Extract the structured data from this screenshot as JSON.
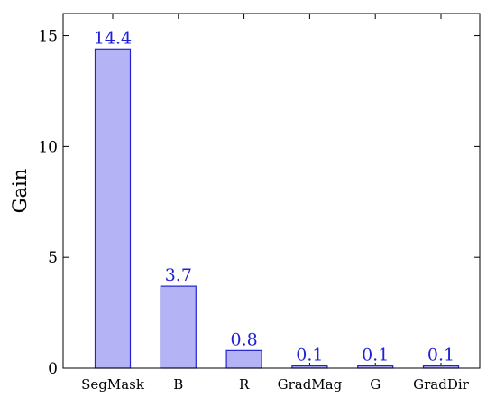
{
  "chart_data": {
    "type": "bar",
    "title": "",
    "xlabel": "",
    "ylabel": "Gain",
    "categories": [
      "SegMask",
      "B",
      "R",
      "GradMag",
      "G",
      "GradDir"
    ],
    "values": [
      14.4,
      3.7,
      0.8,
      0.1,
      0.1,
      0.1
    ],
    "data_labels": [
      "14.4",
      "3.7",
      "0.8",
      "0.1",
      "0.1",
      "0.1"
    ],
    "ylim": [
      0,
      16
    ],
    "yticks": [
      0,
      5,
      10,
      15
    ],
    "grid": false,
    "legend": "none",
    "colors": {
      "bar_fill": "#b3b3f5",
      "bar_stroke": "#2323d2",
      "data_label": "#1f1fd6"
    }
  }
}
